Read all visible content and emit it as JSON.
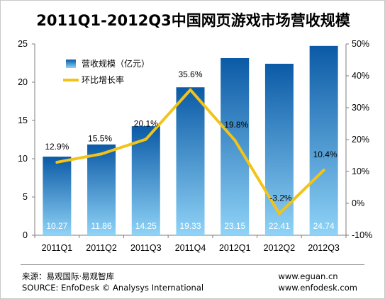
{
  "title": "2011Q1-2012Q3中国网页游戏市场营收规模",
  "footer": {
    "source_cn": "来源：易观国际·易观智库",
    "source_en": "SOURCE: EnfoDesk © Analysys International",
    "url1": "www.eguan.cn",
    "url2": "www.enfodesk.com"
  },
  "chart_data": {
    "type": "bar",
    "categories": [
      "2011Q1",
      "2011Q2",
      "2011Q3",
      "2011Q4",
      "2012Q1",
      "2012Q2",
      "2012Q3"
    ],
    "series": [
      {
        "name": "营收规模（亿元）",
        "type": "bar",
        "axis": "left",
        "values": [
          10.27,
          11.86,
          14.25,
          19.33,
          23.15,
          22.41,
          24.74
        ],
        "value_labels": [
          "10.27",
          "11.86",
          "14.25",
          "19.33",
          "23.15",
          "22.41",
          "24.74"
        ]
      },
      {
        "name": "环比增长率",
        "type": "line",
        "axis": "right",
        "values": [
          12.9,
          15.5,
          20.1,
          35.6,
          19.8,
          -3.2,
          10.4
        ],
        "value_labels": [
          "12.9%",
          "15.5%",
          "20.1%",
          "35.6%",
          "19.8%",
          "-3.2%",
          "10.4%"
        ]
      }
    ],
    "ylim": [
      0,
      25
    ],
    "yticks": [
      "0",
      "5",
      "10",
      "15",
      "20",
      "25"
    ],
    "y2lim": [
      -10,
      50
    ],
    "y2ticks": [
      "-10%",
      "0%",
      "10%",
      "20%",
      "30%",
      "40%",
      "50%"
    ],
    "legend_position": "top-left",
    "grid": false,
    "colors": {
      "bar_top": "#0b5aa6",
      "bar_bottom": "#8fd3f7",
      "line": "#f2c318"
    }
  }
}
